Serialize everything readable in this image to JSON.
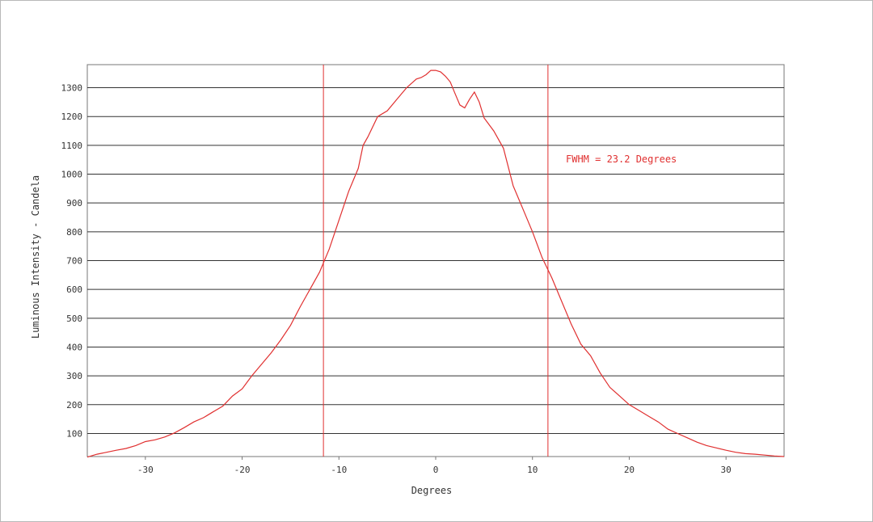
{
  "chart_data": {
    "type": "line",
    "title": "",
    "xlabel": "Degrees",
    "ylabel": "Luminous Intensity - Candela",
    "xlim": [
      -36,
      36
    ],
    "ylim": [
      20,
      1380
    ],
    "xticks": [
      -30,
      -20,
      -10,
      0,
      10,
      20,
      30
    ],
    "yticks": [
      100,
      200,
      300,
      400,
      500,
      600,
      700,
      800,
      900,
      1000,
      1100,
      1200,
      1300
    ],
    "grid": "horizontal",
    "vertical_markers": [
      -11.6,
      11.6
    ],
    "annotation": "FWHM = 23.2 Degrees",
    "colors": {
      "curve": "#e03030",
      "grid": "#333333",
      "axis": "#777777"
    },
    "series": [
      {
        "x": [
          -36,
          -35,
          -34,
          -33,
          -32,
          -31,
          -30,
          -29,
          -28,
          -27,
          -26,
          -25,
          -24,
          -23,
          -22,
          -21,
          -20,
          -19,
          -18,
          -17,
          -16,
          -15,
          -14,
          -13,
          -12,
          -11,
          -10,
          -9,
          -8,
          -7.5,
          -7,
          -6,
          -5,
          -4,
          -3,
          -2,
          -1.5,
          -1,
          -0.5,
          0,
          0.5,
          1,
          1.5,
          2,
          2.5,
          3,
          3.5,
          4,
          4.5,
          5,
          6,
          7,
          8,
          9,
          10,
          11,
          12,
          13,
          14,
          15,
          16,
          17,
          18,
          19,
          20,
          21,
          22,
          23,
          24,
          25,
          26,
          27,
          28,
          29,
          30,
          31,
          32,
          33,
          34,
          35,
          36
        ],
        "y": [
          18,
          28,
          35,
          42,
          48,
          58,
          72,
          78,
          88,
          102,
          120,
          140,
          155,
          175,
          195,
          230,
          255,
          300,
          340,
          380,
          425,
          475,
          540,
          600,
          660,
          740,
          840,
          940,
          1020,
          1100,
          1130,
          1200,
          1220,
          1260,
          1300,
          1330,
          1335,
          1345,
          1360,
          1360,
          1355,
          1340,
          1320,
          1280,
          1240,
          1230,
          1260,
          1285,
          1250,
          1195,
          1150,
          1090,
          960,
          880,
          800,
          710,
          640,
          560,
          480,
          410,
          370,
          310,
          260,
          230,
          200,
          180,
          160,
          140,
          115,
          100,
          85,
          70,
          58,
          50,
          42,
          35,
          30,
          28,
          25,
          22,
          20
        ]
      }
    ]
  }
}
